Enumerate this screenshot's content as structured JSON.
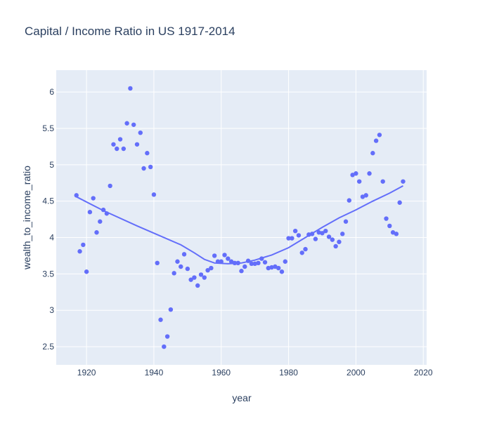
{
  "chart_data": {
    "type": "scatter",
    "title": "Capital / Income Ratio in US 1917-2014",
    "xlabel": "year",
    "ylabel": "wealth_to_income_ratio",
    "xlim": [
      1911,
      2021
    ],
    "ylim": [
      2.25,
      6.3
    ],
    "x_ticks": [
      1920,
      1940,
      1960,
      1980,
      2000,
      2020
    ],
    "y_ticks": [
      2.5,
      3,
      3.5,
      4,
      4.5,
      5,
      5.5,
      6
    ],
    "grid": true,
    "legend": "none",
    "colors": {
      "plot_bg": "#e5ecf6",
      "grid": "#ffffff",
      "marker": "#636efa",
      "trend": "#636efa",
      "text": "#2a3f5f"
    },
    "series": [
      {
        "kind": "markers",
        "points": [
          [
            1917,
            4.58
          ],
          [
            1918,
            3.81
          ],
          [
            1919,
            3.9
          ],
          [
            1920,
            3.53
          ],
          [
            1921,
            4.35
          ],
          [
            1922,
            4.54
          ],
          [
            1923,
            4.07
          ],
          [
            1924,
            4.22
          ],
          [
            1925,
            4.38
          ],
          [
            1926,
            4.33
          ],
          [
            1927,
            4.71
          ],
          [
            1928,
            5.28
          ],
          [
            1929,
            5.22
          ],
          [
            1930,
            5.35
          ],
          [
            1931,
            5.22
          ],
          [
            1932,
            5.57
          ],
          [
            1933,
            6.05
          ],
          [
            1934,
            5.55
          ],
          [
            1935,
            5.28
          ],
          [
            1936,
            5.44
          ],
          [
            1937,
            4.95
          ],
          [
            1938,
            5.16
          ],
          [
            1939,
            4.97
          ],
          [
            1940,
            4.59
          ],
          [
            1941,
            3.65
          ],
          [
            1942,
            2.87
          ],
          [
            1943,
            2.5
          ],
          [
            1944,
            2.64
          ],
          [
            1945,
            3.01
          ],
          [
            1946,
            3.51
          ],
          [
            1947,
            3.67
          ],
          [
            1948,
            3.6
          ],
          [
            1949,
            3.77
          ],
          [
            1950,
            3.57
          ],
          [
            1951,
            3.42
          ],
          [
            1952,
            3.45
          ],
          [
            1953,
            3.34
          ],
          [
            1954,
            3.49
          ],
          [
            1955,
            3.45
          ],
          [
            1956,
            3.55
          ],
          [
            1957,
            3.58
          ],
          [
            1958,
            3.75
          ],
          [
            1959,
            3.67
          ],
          [
            1960,
            3.67
          ],
          [
            1961,
            3.76
          ],
          [
            1962,
            3.71
          ],
          [
            1963,
            3.67
          ],
          [
            1964,
            3.65
          ],
          [
            1965,
            3.65
          ],
          [
            1966,
            3.54
          ],
          [
            1967,
            3.6
          ],
          [
            1968,
            3.68
          ],
          [
            1969,
            3.64
          ],
          [
            1970,
            3.64
          ],
          [
            1971,
            3.65
          ],
          [
            1972,
            3.71
          ],
          [
            1973,
            3.66
          ],
          [
            1974,
            3.58
          ],
          [
            1975,
            3.59
          ],
          [
            1976,
            3.6
          ],
          [
            1977,
            3.58
          ],
          [
            1978,
            3.53
          ],
          [
            1979,
            3.67
          ],
          [
            1980,
            3.99
          ],
          [
            1981,
            3.99
          ],
          [
            1982,
            4.09
          ],
          [
            1983,
            4.03
          ],
          [
            1984,
            3.79
          ],
          [
            1985,
            3.84
          ],
          [
            1986,
            4.04
          ],
          [
            1987,
            4.05
          ],
          [
            1988,
            3.98
          ],
          [
            1989,
            4.07
          ],
          [
            1990,
            4.06
          ],
          [
            1991,
            4.09
          ],
          [
            1992,
            4.01
          ],
          [
            1993,
            3.97
          ],
          [
            1994,
            3.88
          ],
          [
            1995,
            3.94
          ],
          [
            1996,
            4.05
          ],
          [
            1997,
            4.22
          ],
          [
            1998,
            4.51
          ],
          [
            1999,
            4.86
          ],
          [
            2000,
            4.88
          ],
          [
            2001,
            4.77
          ],
          [
            2002,
            4.56
          ],
          [
            2003,
            4.58
          ],
          [
            2004,
            4.88
          ],
          [
            2005,
            5.16
          ],
          [
            2006,
            5.33
          ],
          [
            2007,
            5.41
          ],
          [
            2008,
            4.77
          ],
          [
            2009,
            4.26
          ],
          [
            2010,
            4.16
          ],
          [
            2011,
            4.07
          ],
          [
            2012,
            4.05
          ],
          [
            2013,
            4.48
          ],
          [
            2014,
            4.77
          ]
        ]
      },
      {
        "kind": "line",
        "points": [
          [
            1917,
            4.56
          ],
          [
            1925,
            4.37
          ],
          [
            1935,
            4.16
          ],
          [
            1940,
            4.06
          ],
          [
            1948,
            3.9
          ],
          [
            1952,
            3.79
          ],
          [
            1955,
            3.7
          ],
          [
            1958,
            3.65
          ],
          [
            1962,
            3.64
          ],
          [
            1966,
            3.65
          ],
          [
            1970,
            3.69
          ],
          [
            1975,
            3.76
          ],
          [
            1980,
            3.86
          ],
          [
            1985,
            4.0
          ],
          [
            1990,
            4.14
          ],
          [
            1995,
            4.27
          ],
          [
            2000,
            4.38
          ],
          [
            2005,
            4.5
          ],
          [
            2010,
            4.61
          ],
          [
            2014,
            4.71
          ]
        ]
      }
    ]
  }
}
